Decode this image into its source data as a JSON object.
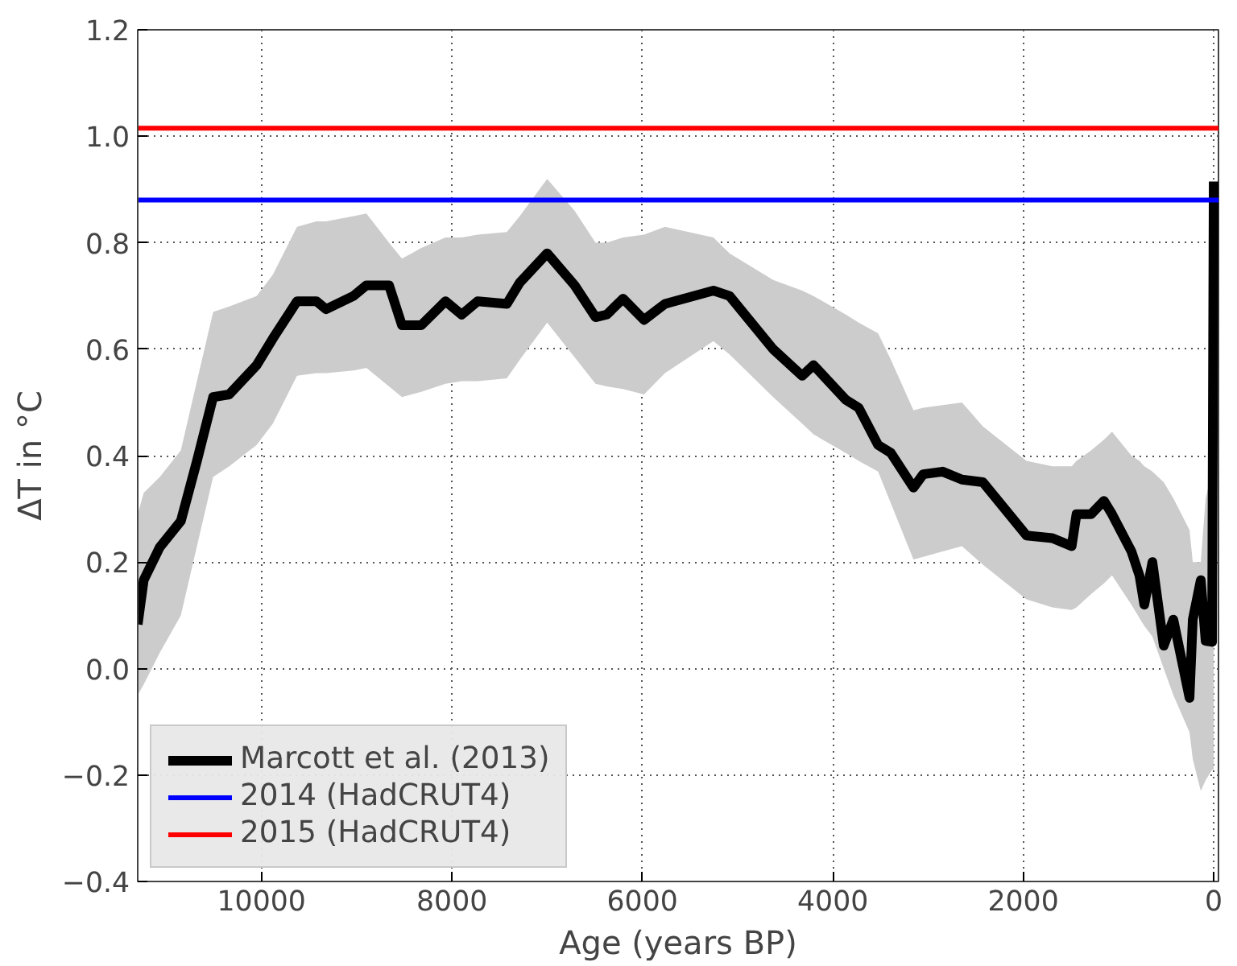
{
  "chart_data": {
    "type": "line",
    "xlabel": "Age (years BP)",
    "ylabel": "ΔT in °C",
    "xlim": [
      11300,
      -50
    ],
    "xticks": [
      10000,
      8000,
      6000,
      4000,
      2000,
      0
    ],
    "ylim": [
      -0.4,
      1.2
    ],
    "yticks": [
      {
        "value": -0.4,
        "label": "−0.4"
      },
      {
        "value": -0.2,
        "label": "−0.2"
      },
      {
        "value": 0,
        "label": "0.0"
      },
      {
        "value": 0.2,
        "label": "0.2"
      },
      {
        "value": 0.4,
        "label": "0.4"
      },
      {
        "value": 0.6,
        "label": "0.6"
      },
      {
        "value": 0.8,
        "label": "0.8"
      },
      {
        "value": 1.0,
        "label": "1.0"
      },
      {
        "value": 1.2,
        "label": "1.2"
      }
    ],
    "grid": true,
    "legend": "bottom left",
    "series": [
      {
        "name": "Marcott et al. (2013)",
        "color": "#000000",
        "lower": [
          -0.05,
          -0.03,
          0.03,
          0.1,
          0.23,
          0.36,
          0.38,
          0.42,
          0.46,
          0.55,
          0.555,
          0.555,
          0.56,
          0.565,
          0.53,
          0.51,
          0.52,
          0.535,
          0.54,
          0.54,
          0.545,
          0.58,
          0.65,
          0.585,
          0.535,
          0.53,
          0.525,
          0.515,
          0.555,
          0.615,
          0.59,
          0.51,
          0.46,
          0.44,
          0.405,
          0.39,
          0.37,
          0.31,
          0.205,
          0.21,
          0.22,
          0.23,
          0.195,
          0.13,
          0.115,
          0.11,
          0.115,
          0.14,
          0.16,
          0.175,
          0.12,
          0.095,
          0.08,
          0.06,
          0.0,
          -0.05,
          -0.12,
          -0.17,
          -0.23,
          -0.21,
          -0.19,
          -0.19
        ],
        "upper": [
          0.29,
          0.33,
          0.36,
          0.41,
          0.54,
          0.67,
          0.68,
          0.7,
          0.74,
          0.83,
          0.84,
          0.84,
          0.85,
          0.855,
          0.8,
          0.77,
          0.79,
          0.81,
          0.81,
          0.815,
          0.82,
          0.85,
          0.92,
          0.86,
          0.8,
          0.8,
          0.81,
          0.815,
          0.83,
          0.81,
          0.78,
          0.73,
          0.71,
          0.7,
          0.665,
          0.65,
          0.63,
          0.58,
          0.485,
          0.49,
          0.495,
          0.5,
          0.455,
          0.39,
          0.38,
          0.38,
          0.39,
          0.41,
          0.43,
          0.445,
          0.4,
          0.39,
          0.38,
          0.37,
          0.35,
          0.32,
          0.26,
          0.2,
          0.2,
          0.32,
          0.37,
          0.37
        ],
        "x": [
          11300,
          11237,
          11068,
          10847,
          10678,
          10508,
          10339,
          10051,
          9881,
          9627,
          9424,
          9322,
          9034,
          8898,
          8661,
          8525,
          8322,
          8068,
          7898,
          7729,
          7424,
          7288,
          7000,
          6712,
          6492,
          6373,
          6203,
          5983,
          5763,
          5254,
          5085,
          4627,
          4322,
          4203,
          3864,
          3729,
          3525,
          3390,
          3153,
          3051,
          2847,
          2644,
          2424,
          1966,
          1695,
          1492,
          1441,
          1288,
          1153,
          1068,
          864,
          780,
          729,
          644,
          525,
          424,
          254,
          220,
          136,
          85,
          17,
          0
        ],
        "values": [
          0.083,
          0.166,
          0.228,
          0.277,
          0.39,
          0.51,
          0.515,
          0.57,
          0.62,
          0.69,
          0.69,
          0.675,
          0.7,
          0.72,
          0.72,
          0.645,
          0.645,
          0.69,
          0.665,
          0.69,
          0.685,
          0.725,
          0.78,
          0.72,
          0.66,
          0.665,
          0.695,
          0.655,
          0.685,
          0.71,
          0.7,
          0.6,
          0.55,
          0.57,
          0.505,
          0.49,
          0.42,
          0.405,
          0.34,
          0.365,
          0.37,
          0.355,
          0.35,
          0.25,
          0.245,
          0.23,
          0.29,
          0.29,
          0.315,
          0.29,
          0.22,
          0.175,
          0.12,
          0.2,
          0.043,
          0.092,
          -0.055,
          0.092,
          0.166,
          0.052,
          0.05,
          0.915
        ]
      }
    ],
    "ref_lines": [
      {
        "axis": "y",
        "value": 0.88,
        "label": "2014 (HadCRUT4)",
        "color": "#0000ff"
      },
      {
        "axis": "y",
        "value": 1.015,
        "label": "2015 (HadCRUT4)",
        "color": "#ff0000"
      }
    ]
  }
}
